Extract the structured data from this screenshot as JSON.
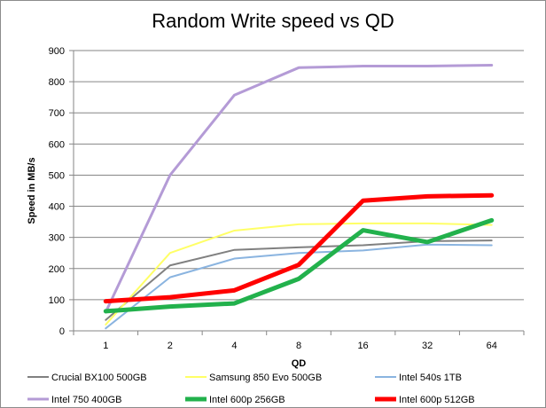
{
  "chart_data": {
    "type": "line",
    "title": "Random Write speed vs QD",
    "xlabel": "QD",
    "ylabel": "Speed in MB/s",
    "categories": [
      "1",
      "2",
      "4",
      "8",
      "16",
      "32",
      "64"
    ],
    "ylim": [
      0,
      900
    ],
    "yticks": [
      0,
      100,
      200,
      300,
      400,
      500,
      600,
      700,
      800,
      900
    ],
    "grid": "horizontal",
    "legend": "bottom",
    "series": [
      {
        "name": "Crucial BX100 500GB",
        "color": "#808080",
        "values": [
          35,
          210,
          260,
          268,
          275,
          288,
          290
        ]
      },
      {
        "name": "Samsung 850 Evo 500GB",
        "color": "#ffff66",
        "values": [
          20,
          250,
          322,
          342,
          345,
          345,
          340
        ]
      },
      {
        "name": "Intel 540s 1TB",
        "color": "#8ab4e0",
        "values": [
          8,
          172,
          232,
          250,
          258,
          277,
          275
        ]
      },
      {
        "name": "Intel 750 400GB",
        "color": "#b49bd6",
        "values": [
          60,
          500,
          757,
          845,
          850,
          850,
          853
        ]
      },
      {
        "name": "Intel 600p 256GB",
        "color": "#22b14c",
        "values": [
          63,
          78,
          88,
          167,
          323,
          285,
          355
        ]
      },
      {
        "name": "Intel 600p 512GB",
        "color": "#ff0000",
        "values": [
          95,
          108,
          130,
          212,
          418,
          432,
          435
        ]
      }
    ]
  }
}
